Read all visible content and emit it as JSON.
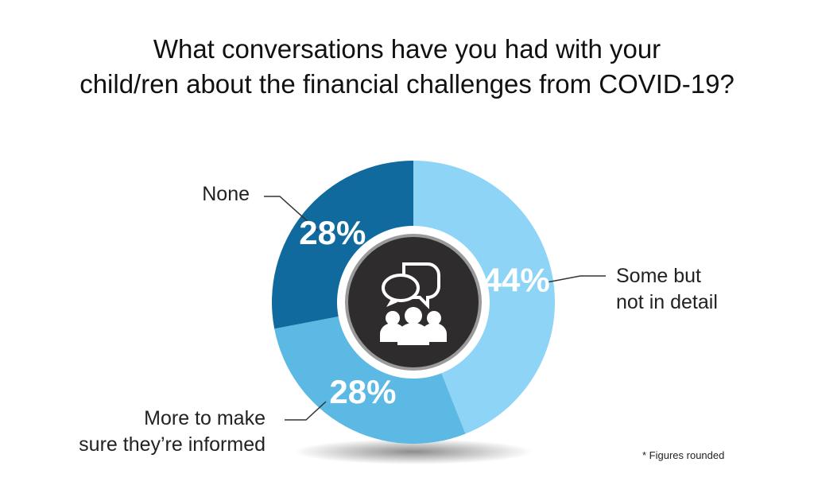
{
  "chart_data": {
    "type": "pie",
    "title": "What conversations have you had with your\nchild/ren about the financial challenges from COVID-19?",
    "categories": [
      "Some but\nnot in detail",
      "More to make\nsure they’re informed",
      "None"
    ],
    "values": [
      44,
      28,
      28
    ],
    "value_labels": [
      "44%",
      "28%",
      "28%"
    ],
    "colors": [
      "#8dd4f6",
      "#5cb9e4",
      "#106a9d"
    ],
    "note": "* Figures rounded"
  }
}
